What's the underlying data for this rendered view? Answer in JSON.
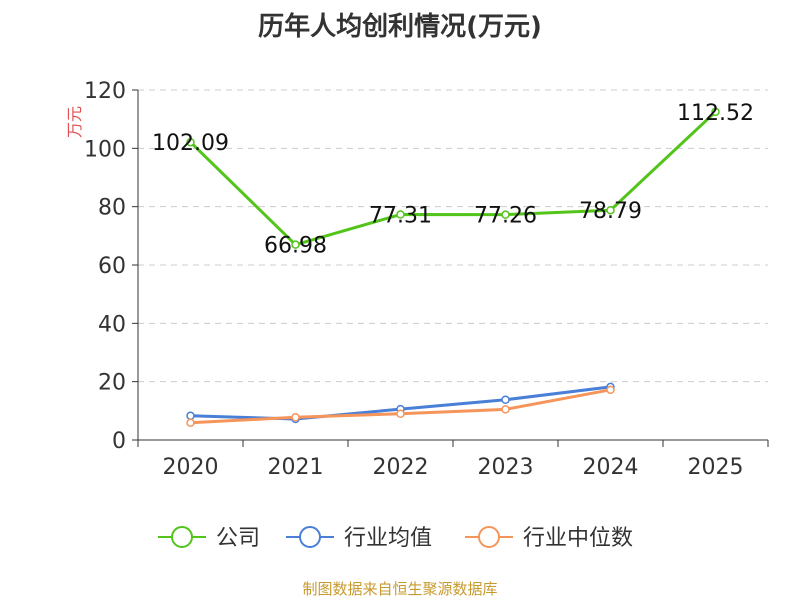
{
  "colors": {
    "company": "#52c41a",
    "industry_avg": "#4a7fd8",
    "industry_median": "#f5955a",
    "grid": "#cccccc",
    "axis": "#333333",
    "unit": "#e05050",
    "footer": "#c79a2e"
  },
  "chart_data": {
    "type": "line",
    "title": "历年人均创利情况(万元)",
    "ylabel": "万元",
    "xlabel": "",
    "categories": [
      "2020",
      "2021",
      "2022",
      "2023",
      "2024",
      "2025"
    ],
    "ylim": [
      0,
      120
    ],
    "yticks": [
      0,
      20,
      40,
      60,
      80,
      100,
      120
    ],
    "grid": true,
    "legend_position": "bottom",
    "series": [
      {
        "name": "公司",
        "values": [
          102.09,
          66.98,
          77.31,
          77.26,
          78.79,
          112.52
        ],
        "labels": [
          "102.09",
          "66.98",
          "77.31",
          "77.26",
          "78.79",
          "112.52"
        ],
        "color_key": "company"
      },
      {
        "name": "行业均值",
        "values": [
          8.3,
          7.2,
          10.6,
          13.8,
          18.2,
          null
        ],
        "color_key": "industry_avg"
      },
      {
        "name": "行业中位数",
        "values": [
          5.9,
          7.8,
          9.0,
          10.5,
          17.2,
          null
        ],
        "color_key": "industry_median"
      }
    ]
  },
  "footer": {
    "source": "制图数据来自恒生聚源数据库"
  }
}
